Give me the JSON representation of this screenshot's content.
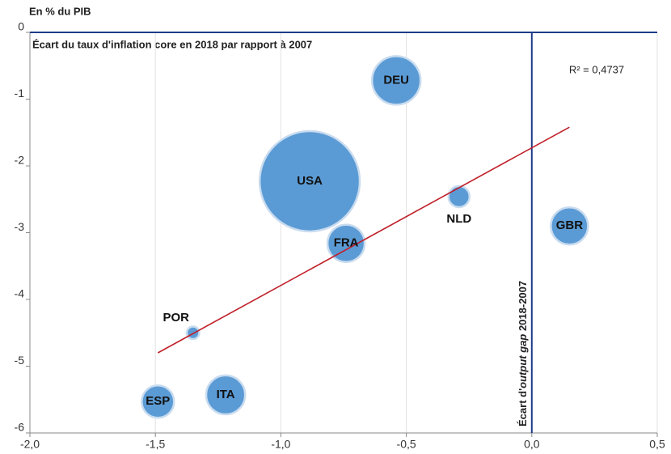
{
  "chart_data": {
    "type": "scatter",
    "y_axis_label": "En % du PIB",
    "title": "Écart du taux d'inflation core en 2018 par rapport à 2007",
    "labels": [
      "DEU",
      "USA",
      "NLD",
      "GBR",
      "FRA",
      "POR",
      "ITA",
      "ESP"
    ],
    "x": [
      -0.54,
      -0.885,
      -0.29,
      0.15,
      -0.74,
      -1.35,
      -1.22,
      -1.49
    ],
    "y": [
      -0.72,
      -2.23,
      -2.46,
      -2.9,
      -3.16,
      -4.5,
      -5.43,
      -5.53
    ],
    "sizes": [
      9,
      38.4,
      1.7,
      5.3,
      5.3,
      0.6,
      5.8,
      4
    ],
    "color": "#5b9bd5",
    "xlim": [
      -2.0,
      0.5
    ],
    "ylim": [
      -6,
      0
    ],
    "xticks": [
      {
        "value": -2.0,
        "label": "-2,0"
      },
      {
        "value": -1.5,
        "label": "-1,5"
      },
      {
        "value": -1.0,
        "label": "-1,0"
      },
      {
        "value": -0.5,
        "label": "-0,5"
      },
      {
        "value": 0.0,
        "label": "0,0"
      },
      {
        "value": 0.5,
        "label": "0,5"
      }
    ],
    "yticks": [
      0,
      -1,
      -2,
      -3,
      -4,
      -5,
      -6
    ],
    "grid": true,
    "trendline": {
      "x": [
        -1.49,
        0.15
      ],
      "y": [
        -4.8,
        -1.42
      ],
      "color": "#c0202a",
      "annotation": "R² = 0,4737"
    },
    "vline": {
      "x": 0.0,
      "color": "#1f3c88",
      "label_parts": [
        "Écart d'",
        "output gap",
        " 2018-2007"
      ]
    }
  }
}
